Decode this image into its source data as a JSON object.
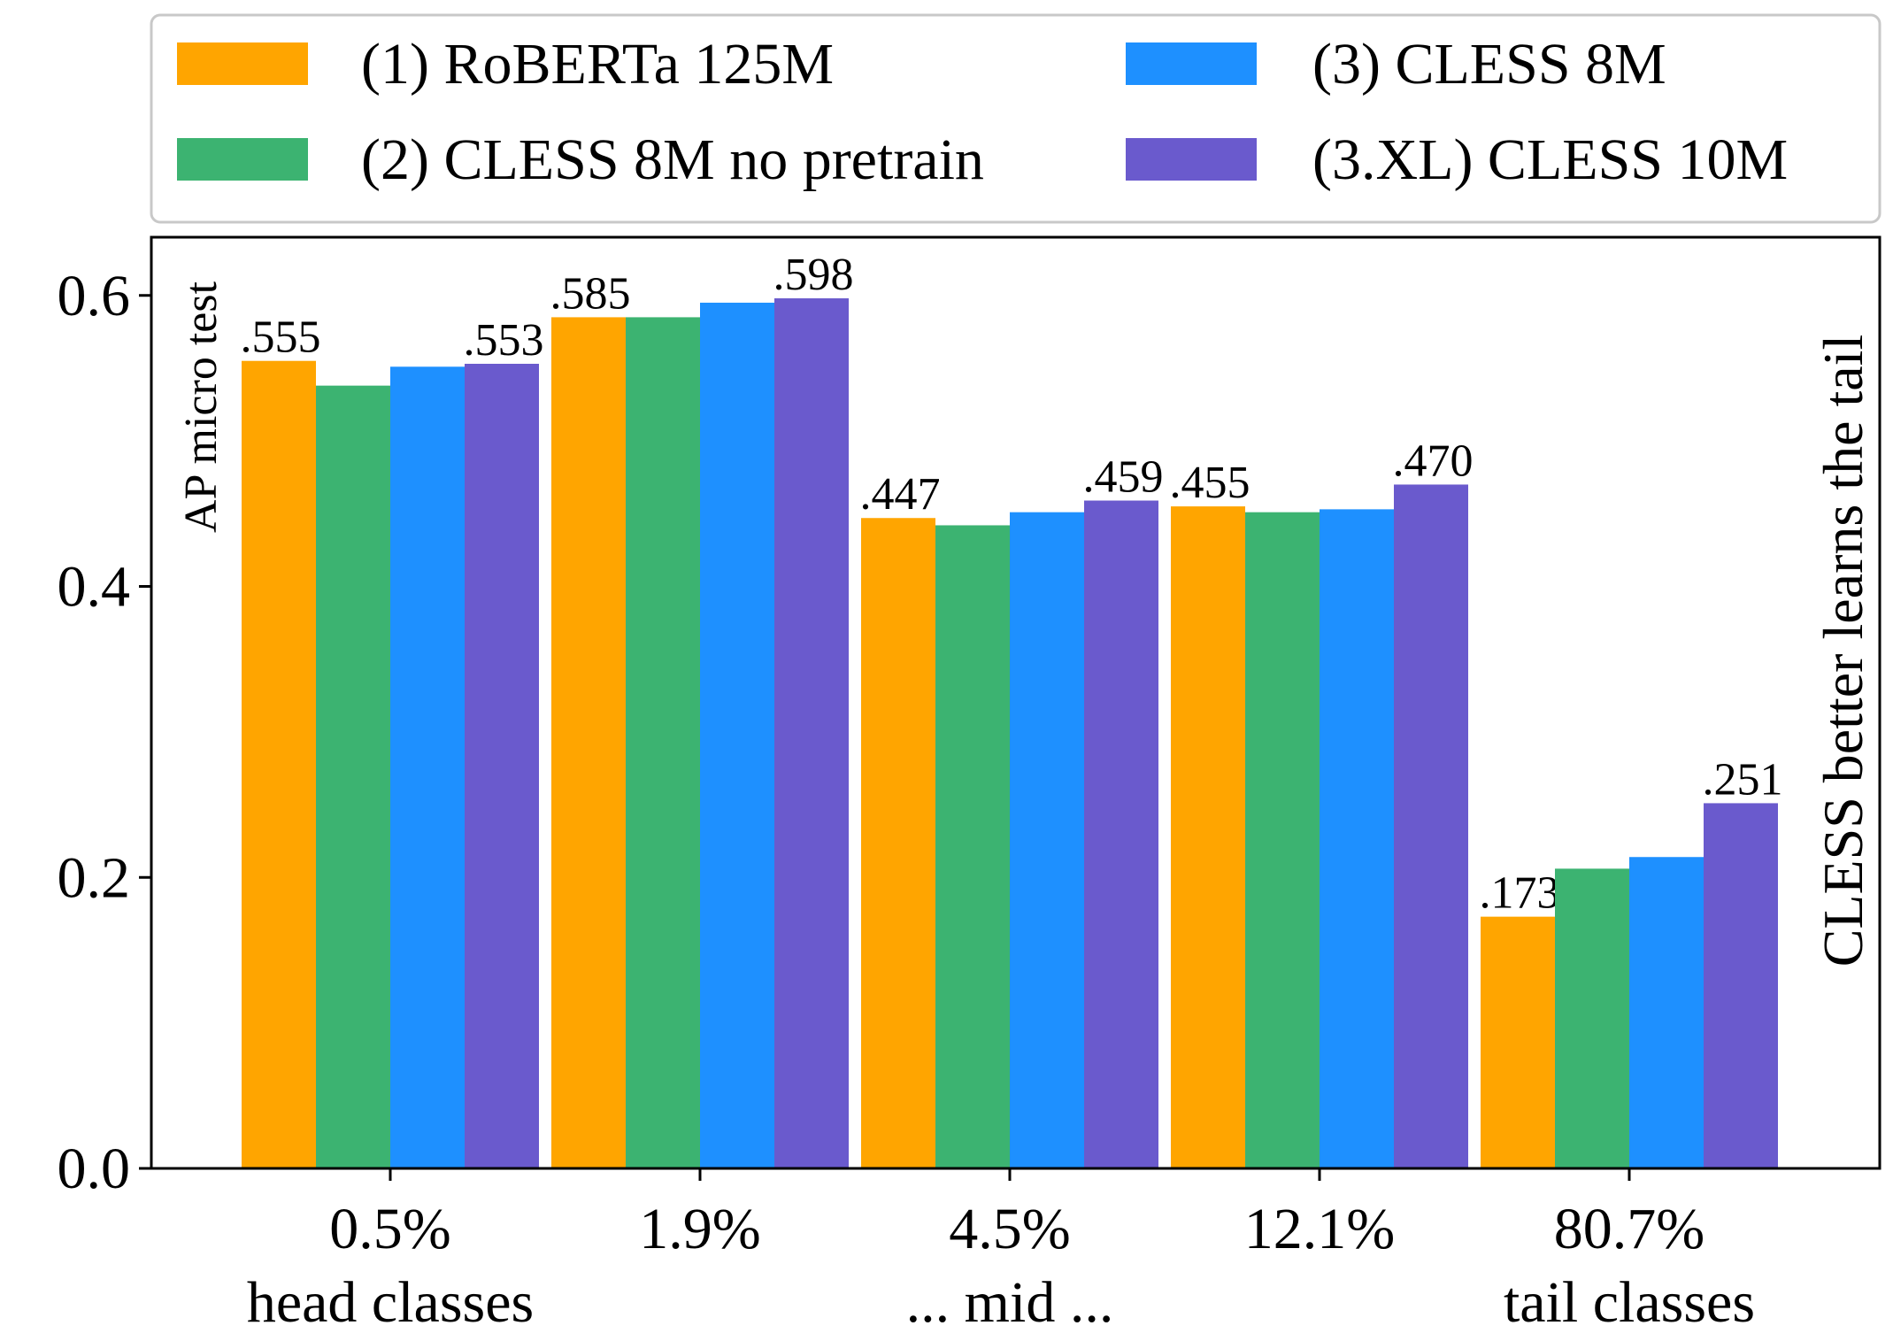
{
  "chart_data": {
    "type": "bar",
    "categories": [
      [
        "0.5%",
        "head classes"
      ],
      [
        "1.9%",
        ""
      ],
      [
        "4.5%",
        "... mid ..."
      ],
      [
        "12.1%",
        ""
      ],
      [
        "80.7%",
        "tail classes"
      ]
    ],
    "series": [
      {
        "name": "(1) RoBERTa 125M",
        "color": "#FFA500",
        "values": [
          0.555,
          0.585,
          0.447,
          0.455,
          0.173
        ],
        "labels": [
          ".555",
          ".585",
          ".447",
          ".455",
          ".173"
        ]
      },
      {
        "name": "(2) CLESS 8M no pretrain",
        "color": "#3CB371",
        "values": [
          0.538,
          0.585,
          0.442,
          0.451,
          0.206
        ],
        "labels": [
          "",
          "",
          "",
          "",
          ""
        ]
      },
      {
        "name": "(3) CLESS 8M",
        "color": "#1E90FF",
        "values": [
          0.551,
          0.595,
          0.451,
          0.453,
          0.214
        ],
        "labels": [
          "",
          "",
          "",
          "",
          ""
        ]
      },
      {
        "name": "(3.XL) CLESS 10M",
        "color": "#6A5ACD",
        "values": [
          0.553,
          0.598,
          0.459,
          0.47,
          0.251
        ],
        "labels": [
          ".553",
          ".598",
          ".459",
          ".470",
          ".251"
        ]
      }
    ],
    "ylabel": "AP micro test",
    "right_annotation": "CLESS better learns the tail",
    "yticks": [
      0.0,
      0.2,
      0.4,
      0.6
    ],
    "ytick_labels": [
      "0.0",
      "0.2",
      "0.4",
      "0.6"
    ],
    "ylim": [
      0,
      0.64
    ],
    "grid": false,
    "legend_position": "top"
  }
}
